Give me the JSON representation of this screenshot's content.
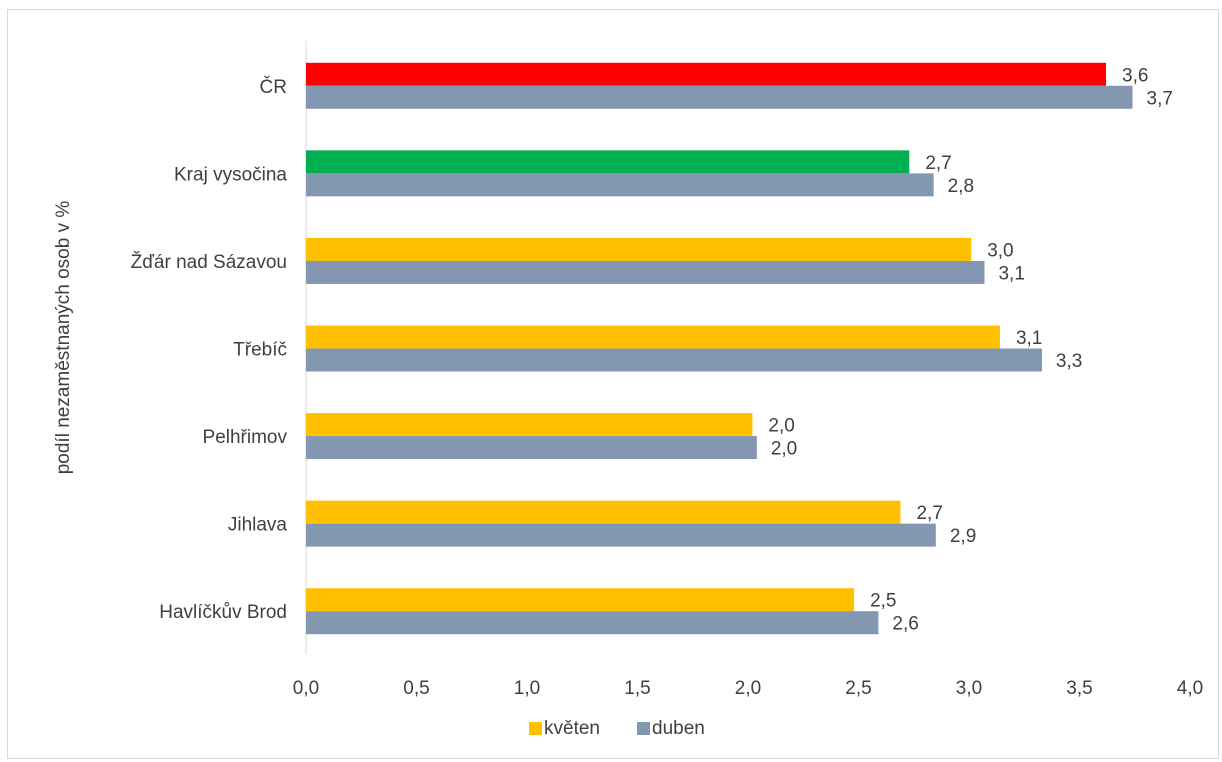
{
  "chart_data": {
    "type": "bar",
    "orientation": "horizontal",
    "title": "",
    "xlabel": "",
    "ylabel": "podíl nezaměstnaných osob v %",
    "xlim": [
      0,
      4.0
    ],
    "x_ticks": [
      "0,0",
      "0,5",
      "1,0",
      "1,5",
      "2,0",
      "2,5",
      "3,0",
      "3,5",
      "4,0"
    ],
    "grid": false,
    "legend_position": "bottom",
    "categories": [
      "ČR",
      "Kraj vysočina",
      "Žďár nad Sázavou ",
      "Třebíč",
      "Pelhřimov",
      "Jihlava",
      "Havlíčkův Brod"
    ],
    "series": [
      {
        "name": "květen",
        "color": "#FFC000",
        "point_colors": [
          "#FF0000",
          "#00B050",
          "#FFC000",
          "#FFC000",
          "#FFC000",
          "#FFC000",
          "#FFC000"
        ],
        "values": [
          3.62,
          2.73,
          3.01,
          3.14,
          2.02,
          2.69,
          2.48
        ],
        "labels": [
          "3,6",
          "2,7",
          "3,0",
          "3,1",
          "2,0",
          "2,7",
          "2,5"
        ]
      },
      {
        "name": "duben",
        "color": "#8497B0",
        "values": [
          3.74,
          2.84,
          3.07,
          3.33,
          2.04,
          2.85,
          2.59
        ],
        "labels": [
          "3,7",
          "2,8",
          "3,1",
          "3,3",
          "2,0",
          "2,9",
          "2,6"
        ]
      }
    ],
    "colors": {
      "axis": "#D9D9D9",
      "text": "#404040"
    }
  }
}
